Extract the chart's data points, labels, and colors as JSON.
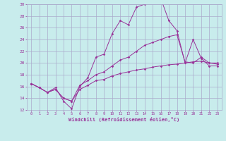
{
  "xlabel": "Windchill (Refroidissement éolien,°C)",
  "background_color": "#c8ecec",
  "grid_color": "#aaaacc",
  "line_color": "#993399",
  "xmin": -0.5,
  "xmax": 23.5,
  "ymin": 12,
  "ymax": 30,
  "yticks": [
    12,
    14,
    16,
    18,
    20,
    22,
    24,
    26,
    28,
    30
  ],
  "xticks": [
    0,
    1,
    2,
    3,
    4,
    5,
    6,
    7,
    8,
    9,
    10,
    11,
    12,
    13,
    14,
    15,
    16,
    17,
    18,
    19,
    20,
    21,
    22,
    23
  ],
  "series": [
    [
      16.5,
      15.8,
      15.0,
      15.8,
      13.5,
      12.2,
      16.0,
      17.5,
      21.0,
      21.5,
      25.0,
      27.2,
      26.5,
      29.5,
      30.0,
      31.0,
      31.0,
      27.2,
      25.5,
      20.0,
      24.0,
      20.8,
      19.5,
      19.5
    ],
    [
      16.5,
      15.8,
      15.0,
      15.5,
      14.0,
      13.5,
      16.2,
      17.0,
      18.0,
      18.5,
      19.5,
      20.5,
      21.0,
      22.0,
      23.0,
      23.5,
      24.0,
      24.5,
      24.8,
      20.2,
      20.0,
      21.0,
      20.0,
      20.0
    ],
    [
      16.5,
      15.8,
      15.0,
      15.5,
      14.0,
      13.5,
      15.5,
      16.2,
      17.0,
      17.2,
      17.8,
      18.2,
      18.5,
      18.8,
      19.0,
      19.3,
      19.5,
      19.7,
      19.8,
      20.0,
      20.2,
      20.3,
      20.0,
      19.8
    ]
  ]
}
